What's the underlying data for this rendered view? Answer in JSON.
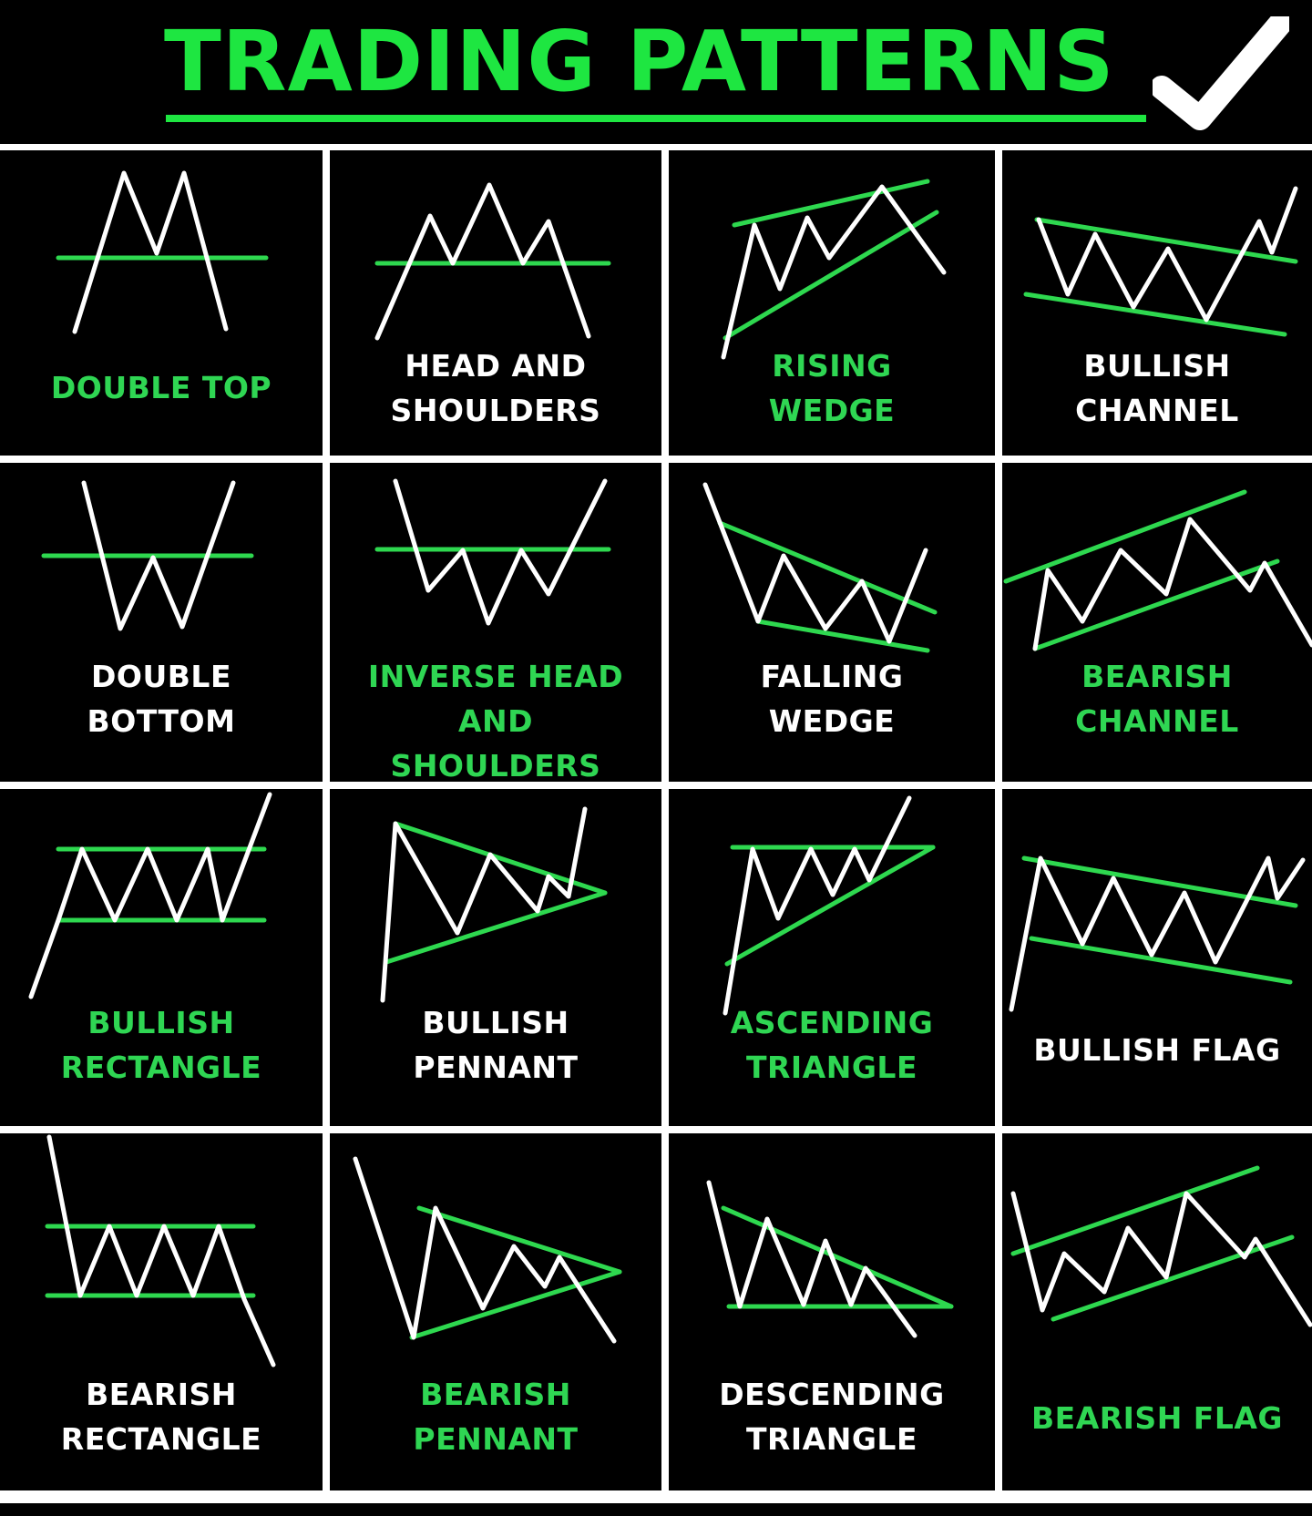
{
  "title": "TRADING PATTERNS",
  "title_icon": "checkmark-icon",
  "colors": {
    "background": "#000000",
    "accent": "#1ee641",
    "label_green": "#2fd653",
    "line_green": "#2ed84f",
    "line_white": "#ffffff",
    "grid": "#ffffff"
  },
  "patterns": [
    {
      "id": "double-top",
      "lines": [
        "DOUBLE TOP"
      ],
      "label_color": "green"
    },
    {
      "id": "head-and-shoulders",
      "lines": [
        "HEAD AND",
        "SHOULDERS"
      ],
      "label_color": "white"
    },
    {
      "id": "rising-wedge",
      "lines": [
        "RISING",
        "WEDGE"
      ],
      "label_color": "green"
    },
    {
      "id": "bullish-channel",
      "lines": [
        "BULLISH",
        "CHANNEL"
      ],
      "label_color": "white"
    },
    {
      "id": "double-bottom",
      "lines": [
        "DOUBLE",
        "BOTTOM"
      ],
      "label_color": "white"
    },
    {
      "id": "inverse-head-and-shoulders",
      "lines": [
        "INVERSE HEAD AND",
        "SHOULDERS"
      ],
      "label_color": "green"
    },
    {
      "id": "falling-wedge",
      "lines": [
        "FALLING",
        "WEDGE"
      ],
      "label_color": "white"
    },
    {
      "id": "bearish-channel",
      "lines": [
        "BEARISH",
        "CHANNEL"
      ],
      "label_color": "green"
    },
    {
      "id": "bullish-rectangle",
      "lines": [
        "BULLISH",
        "RECTANGLE"
      ],
      "label_color": "green"
    },
    {
      "id": "bullish-pennant",
      "lines": [
        "BULLISH",
        "PENNANT"
      ],
      "label_color": "white"
    },
    {
      "id": "ascending-triangle",
      "lines": [
        "ASCENDING",
        "TRIANGLE"
      ],
      "label_color": "green"
    },
    {
      "id": "bullish-flag",
      "lines": [
        "BULLISH FLAG"
      ],
      "label_color": "white"
    },
    {
      "id": "bearish-rectangle",
      "lines": [
        "BEARISH",
        "RECTANGLE"
      ],
      "label_color": "white"
    },
    {
      "id": "bearish-pennant",
      "lines": [
        "BEARISH",
        "PENNANT"
      ],
      "label_color": "green"
    },
    {
      "id": "descending-triangle",
      "lines": [
        "DESCENDING",
        "TRIANGLE"
      ],
      "label_color": "white"
    },
    {
      "id": "bearish-flag",
      "lines": [
        "BEARISH FLAG"
      ],
      "label_color": "green"
    }
  ]
}
